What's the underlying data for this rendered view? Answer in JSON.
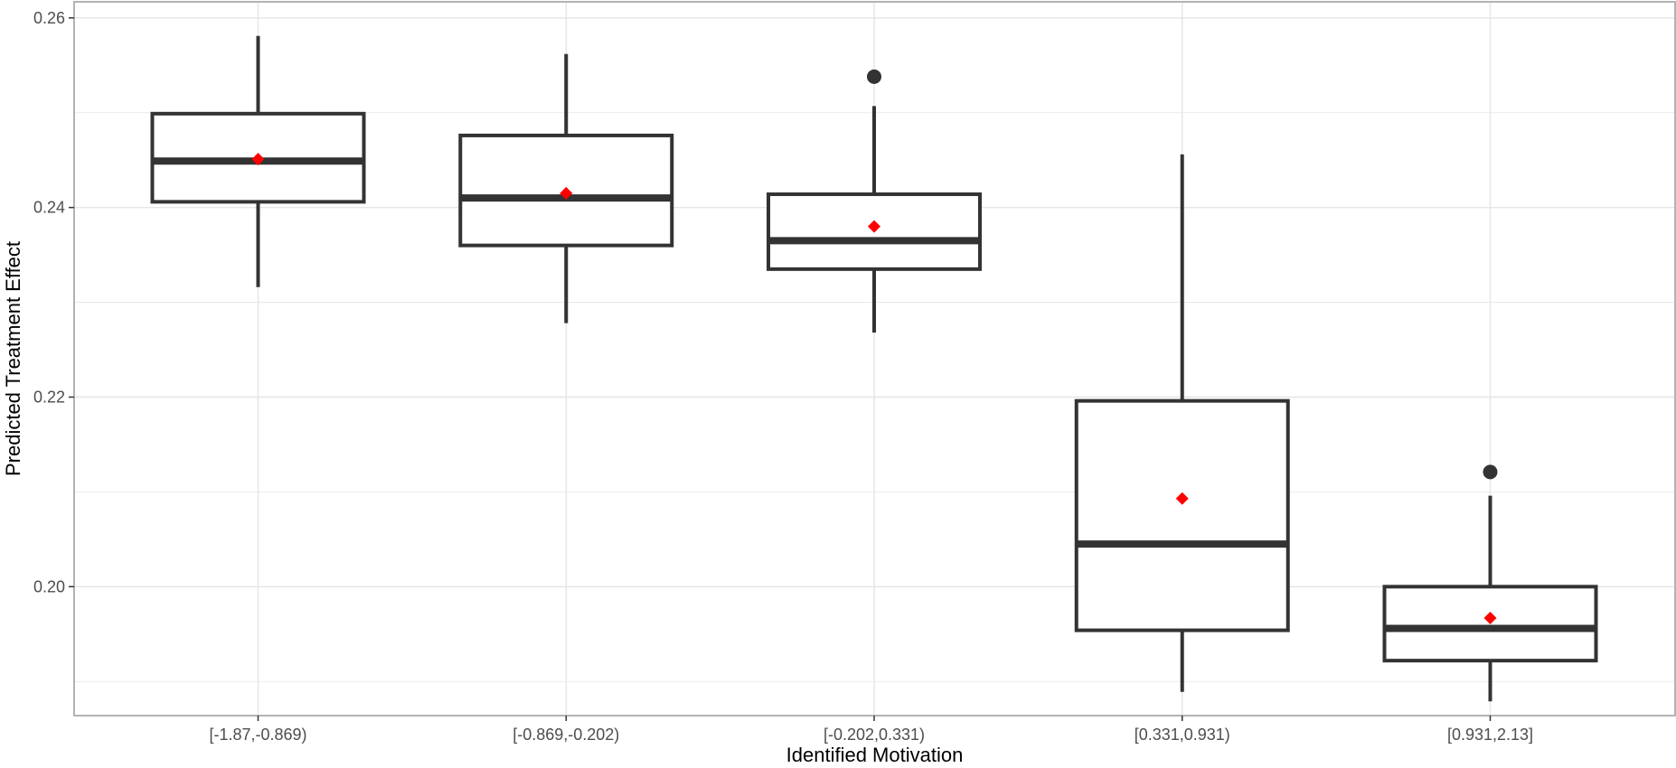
{
  "chart_data": {
    "type": "box",
    "title": "",
    "xlabel": "Identified Motivation",
    "ylabel": "Predicted Treatment Effect",
    "ylim": [
      0.1864,
      0.2617
    ],
    "yticks": [
      0.2,
      0.22,
      0.24,
      0.26
    ],
    "ytick_labels": [
      "0.20",
      "0.22",
      "0.24",
      "0.26"
    ],
    "grid": true,
    "categories": [
      "[-1.87,-0.869)",
      "[-0.869,-0.202)",
      "[-0.202,0.331)",
      "[0.331,0.931)",
      "[0.931,2.13]"
    ],
    "boxes": [
      {
        "whisker_low": 0.2316,
        "q1": 0.2406,
        "median": 0.2449,
        "q3": 0.2499,
        "whisker_high": 0.2581,
        "mean": 0.2451,
        "outliers": []
      },
      {
        "whisker_low": 0.2278,
        "q1": 0.236,
        "median": 0.241,
        "q3": 0.2476,
        "whisker_high": 0.2562,
        "mean": 0.2415,
        "outliers": []
      },
      {
        "whisker_low": 0.2268,
        "q1": 0.2335,
        "median": 0.2365,
        "q3": 0.2414,
        "whisker_high": 0.2507,
        "mean": 0.238,
        "outliers": [
          0.2538
        ]
      },
      {
        "whisker_low": 0.1889,
        "q1": 0.1954,
        "median": 0.2045,
        "q3": 0.2196,
        "whisker_high": 0.2456,
        "mean": 0.2093,
        "outliers": []
      },
      {
        "whisker_low": 0.1879,
        "q1": 0.1922,
        "median": 0.1956,
        "q3": 0.2,
        "whisker_high": 0.2096,
        "mean": 0.1967,
        "outliers": [
          0.2121
        ]
      }
    ],
    "box_color": "#333333",
    "mean_marker_color": "#ff0000",
    "grid_color": "#e5e5e5",
    "panel_border_color": "#b3b3b3"
  }
}
